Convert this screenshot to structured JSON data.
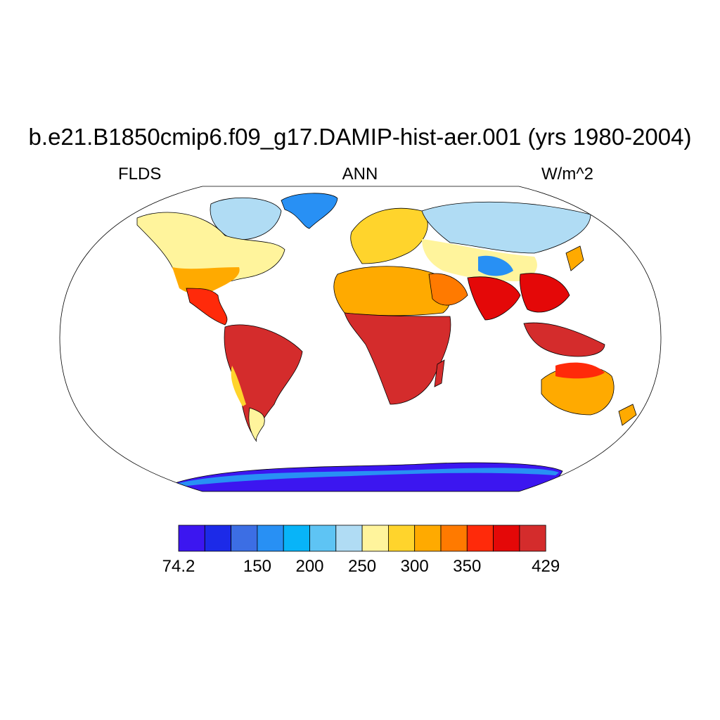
{
  "title": "b.e21.B1850cmip6.f09_g17.DAMIP-hist-aer.001 (yrs 1980-2004)",
  "subtitle_left": "FLDS",
  "subtitle_center": "ANN",
  "subtitle_right": "W/m^2",
  "map": {
    "projection": "Robinson",
    "background": "#ffffff",
    "ocean_masked": true
  },
  "colorbar": {
    "colors": [
      "#3c16f0",
      "#1c2ae8",
      "#3c6ee4",
      "#2890f4",
      "#08b4f8",
      "#5ec4f4",
      "#b0dcf4",
      "#fff49c",
      "#ffd42c",
      "#ffaa00",
      "#ff7a00",
      "#ff2a0a",
      "#e40808",
      "#d42c2c"
    ],
    "labels": [
      "74.2",
      "150",
      "200",
      "250",
      "300",
      "350",
      "429"
    ]
  },
  "regions": [
    {
      "name": "greenland",
      "value_class": 4
    },
    {
      "name": "canadian-arctic",
      "value_class": 5
    },
    {
      "name": "north-america",
      "value_class": 7
    },
    {
      "name": "central-america",
      "value_class": 11
    },
    {
      "name": "south-america",
      "value_class": 13
    },
    {
      "name": "patagonia",
      "value_class": 8
    },
    {
      "name": "europe",
      "value_class": 8
    },
    {
      "name": "siberia",
      "value_class": 6
    },
    {
      "name": "tibet",
      "value_class": 4
    },
    {
      "name": "sahara",
      "value_class": 10
    },
    {
      "name": "central-africa",
      "value_class": 13
    },
    {
      "name": "india-se-asia",
      "value_class": 12
    },
    {
      "name": "indonesia",
      "value_class": 13
    },
    {
      "name": "australia",
      "value_class": 10
    },
    {
      "name": "antarctica",
      "value_class": 0
    }
  ]
}
